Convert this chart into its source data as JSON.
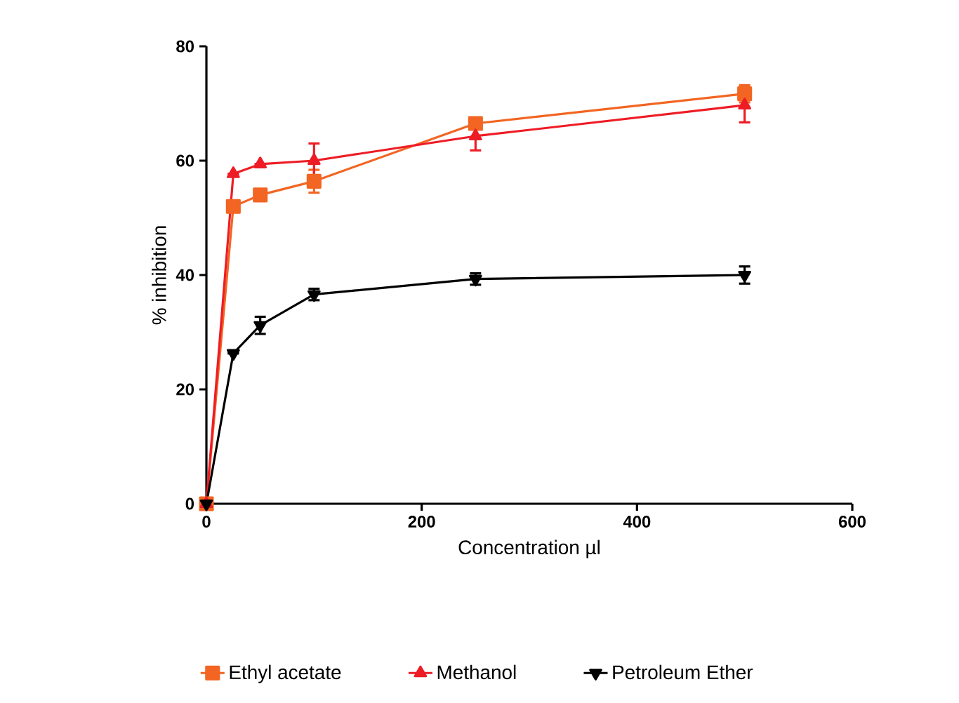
{
  "chart_data": {
    "type": "line",
    "xlabel": "Concentration µl",
    "ylabel": "% inhibition",
    "x": [
      0,
      25,
      50,
      100,
      250,
      500
    ],
    "series": [
      {
        "name": "Ethyl acetate",
        "color": "#f26522",
        "marker": "square",
        "values": [
          0,
          52,
          54,
          56.4,
          66.5,
          71.7
        ],
        "errors": [
          null,
          null,
          1,
          2,
          1,
          1.5
        ]
      },
      {
        "name": "Methanol",
        "color": "#ee1c25",
        "marker": "triangle",
        "values": [
          0,
          57.7,
          59.4,
          60,
          64.3,
          69.7
        ],
        "errors": [
          null,
          null,
          null,
          3,
          2.5,
          3
        ]
      },
      {
        "name": "Petroleum Ether",
        "color": "#000000",
        "marker": "triangle-down",
        "values": [
          0,
          26.3,
          31.2,
          36.6,
          39.3,
          40
        ],
        "errors": [
          null,
          null,
          1.5,
          1,
          1,
          1.5
        ]
      }
    ],
    "xlim": [
      0,
      600
    ],
    "ylim": [
      0,
      80
    ],
    "xticks": [
      0,
      200,
      400,
      600
    ],
    "yticks": [
      0,
      20,
      40,
      60,
      80
    ],
    "legend": "bottom",
    "grid": false,
    "line_style": "solid"
  }
}
